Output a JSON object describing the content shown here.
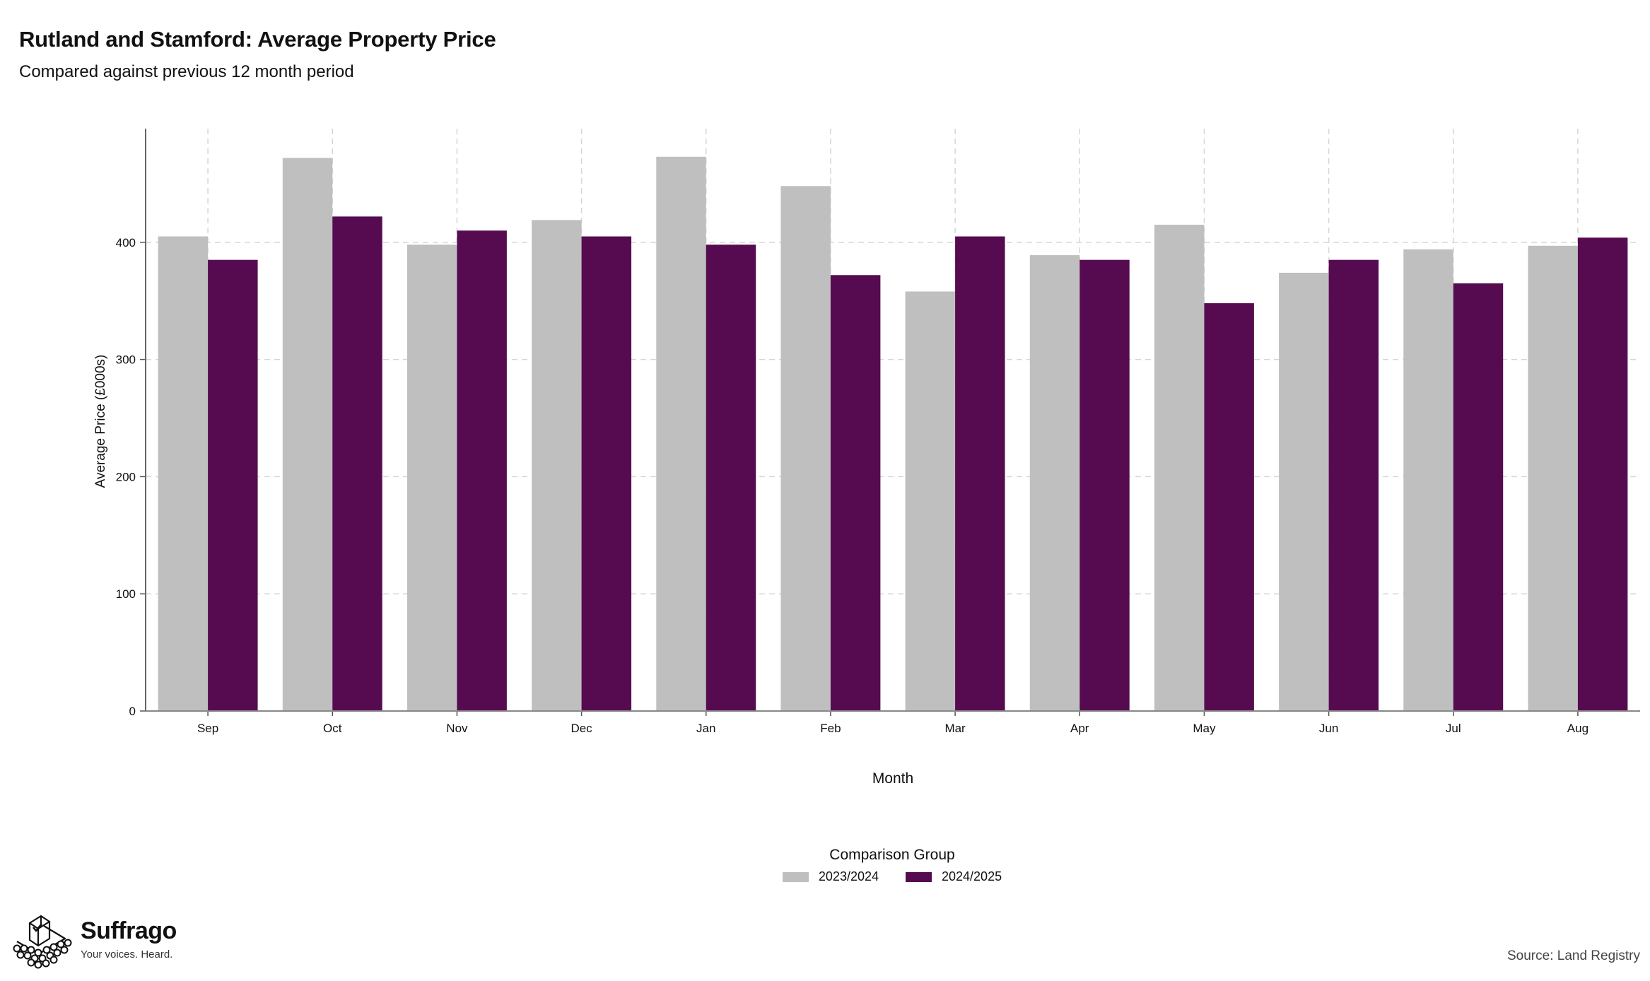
{
  "title": "Rutland and Stamford: Average Property Price",
  "subtitle": "Compared against previous 12 month period",
  "chart_data": {
    "type": "bar",
    "categories": [
      "Sep",
      "Oct",
      "Nov",
      "Dec",
      "Jan",
      "Feb",
      "Mar",
      "Apr",
      "May",
      "Jun",
      "Jul",
      "Aug"
    ],
    "series": [
      {
        "name": "2023/2024",
        "color": "#bfbfbf",
        "values": [
          405,
          472,
          398,
          419,
          473,
          448,
          358,
          389,
          415,
          374,
          394,
          397
        ]
      },
      {
        "name": "2024/2025",
        "color": "#560b51",
        "values": [
          385,
          422,
          410,
          405,
          398,
          372,
          405,
          385,
          348,
          385,
          365,
          404
        ]
      }
    ],
    "xlabel": "Month",
    "ylabel": "Average Price (£000s)",
    "ylim": [
      0,
      497
    ],
    "yticks": [
      0,
      100,
      200,
      300,
      400
    ],
    "grid": true,
    "legend_title": "Comparison Group",
    "legend_position": "bottom"
  },
  "branding": {
    "name": "Suffrago",
    "tagline": "Your voices. Heard.",
    "logo_icon": "ballot-box-icon"
  },
  "source": "Source: Land Registry"
}
